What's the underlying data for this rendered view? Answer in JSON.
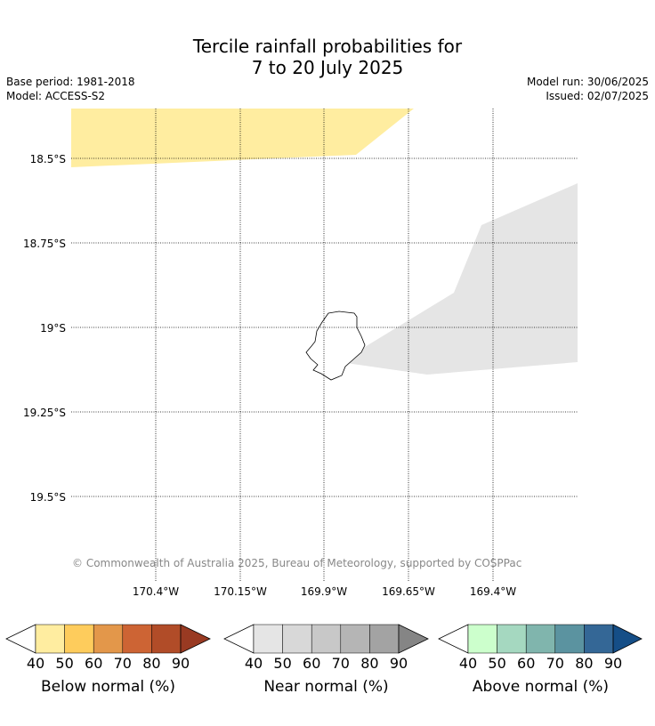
{
  "title": {
    "line1": "Tercile rainfall probabilities for",
    "line2": "7 to 20 July 2025"
  },
  "info": {
    "base_period": "Base period: 1981-2018",
    "model": "Model: ACCESS-S2",
    "model_run": "Model run: 30/06/2025",
    "issued": "Issued: 02/07/2025"
  },
  "map": {
    "lat_labels": [
      "18.5°S",
      "18.75°S",
      "19°S",
      "19.25°S",
      "19.5°S"
    ],
    "lon_labels": [
      "170.4°W",
      "170.15°W",
      "169.9°W",
      "169.65°W",
      "169.4°W"
    ],
    "copyright": "© Commonwealth of Australia 2025, Bureau of Meteorology, supported by COSPPac",
    "regions": [
      {
        "category": "Below normal",
        "probability_band": "40-50",
        "color": "#ffeda0"
      },
      {
        "category": "Near normal",
        "probability_band": "40-50",
        "color": "#e5e5e5"
      }
    ]
  },
  "colorbars": [
    {
      "title": "Below normal (%)",
      "ticks": [
        "40",
        "50",
        "60",
        "70",
        "80",
        "90"
      ],
      "colors": [
        "#ffeda0",
        "#fecc5c",
        "#e3974a",
        "#cd6434",
        "#b14c28",
        "#993a22"
      ]
    },
    {
      "title": "Near normal (%)",
      "ticks": [
        "40",
        "50",
        "60",
        "70",
        "80",
        "90"
      ],
      "colors": [
        "#e5e5e5",
        "#d8d8d8",
        "#c8c8c8",
        "#b5b5b5",
        "#a3a3a3",
        "#858585"
      ]
    },
    {
      "title": "Above normal (%)",
      "ticks": [
        "40",
        "50",
        "60",
        "70",
        "80",
        "90"
      ],
      "colors": [
        "#ccffcc",
        "#a5d8c0",
        "#80b5ad",
        "#5b93a0",
        "#346796",
        "#154e87"
      ]
    }
  ]
}
